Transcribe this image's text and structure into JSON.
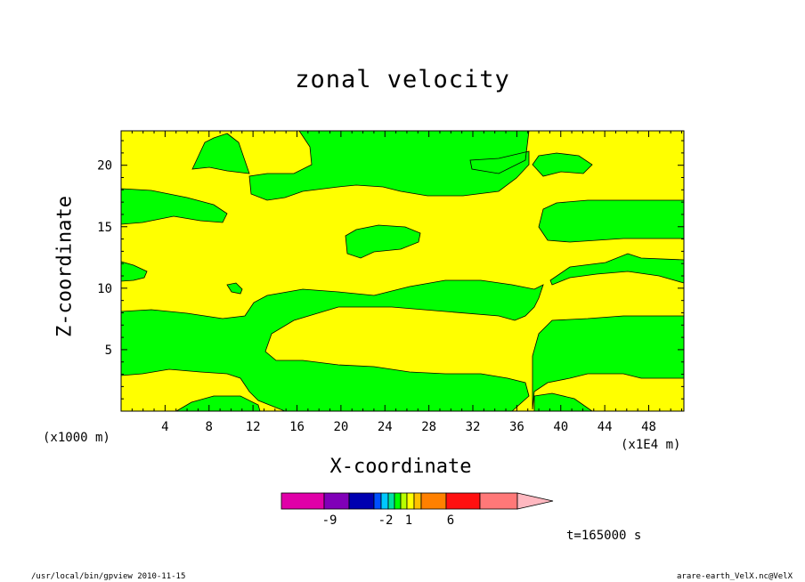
{
  "chart_data": {
    "type": "heatmap",
    "title": "zonal velocity",
    "xlabel": "X-coordinate",
    "ylabel": "Z-coordinate",
    "x_unit_note": "(x1000 m)",
    "x_scale_note": "(x1E4 m)",
    "xlim": [
      0,
      51.2
    ],
    "ylim": [
      0,
      22.8
    ],
    "x_ticks": [
      4,
      8,
      12,
      16,
      20,
      24,
      28,
      32,
      36,
      40,
      44,
      48
    ],
    "y_ticks": [
      5,
      10,
      15,
      20
    ],
    "time_label": "t=165000 s",
    "colorbar": {
      "labels": [
        {
          "text": "-9",
          "value": -9
        },
        {
          "text": "-2",
          "value": -2
        },
        {
          "text": "1",
          "value": 1
        },
        {
          "text": "6",
          "value": 6
        }
      ],
      "colors": [
        "#e000a8",
        "#8000b8",
        "#0000b0",
        "#0050ff",
        "#00c8ff",
        "#00e0a0",
        "#00ff00",
        "#b8ff00",
        "#ffff00",
        "#ffc000",
        "#ff8000",
        "#ff1010",
        "#ff7878",
        "#ffb8c0"
      ]
    },
    "field_colors": {
      "background": "#ffff00",
      "region": "#00ff00"
    }
  },
  "footer": {
    "left": "/usr/local/bin/gpview  2010-11-15",
    "right": "arare-earth_VelX.nc@VelX"
  }
}
